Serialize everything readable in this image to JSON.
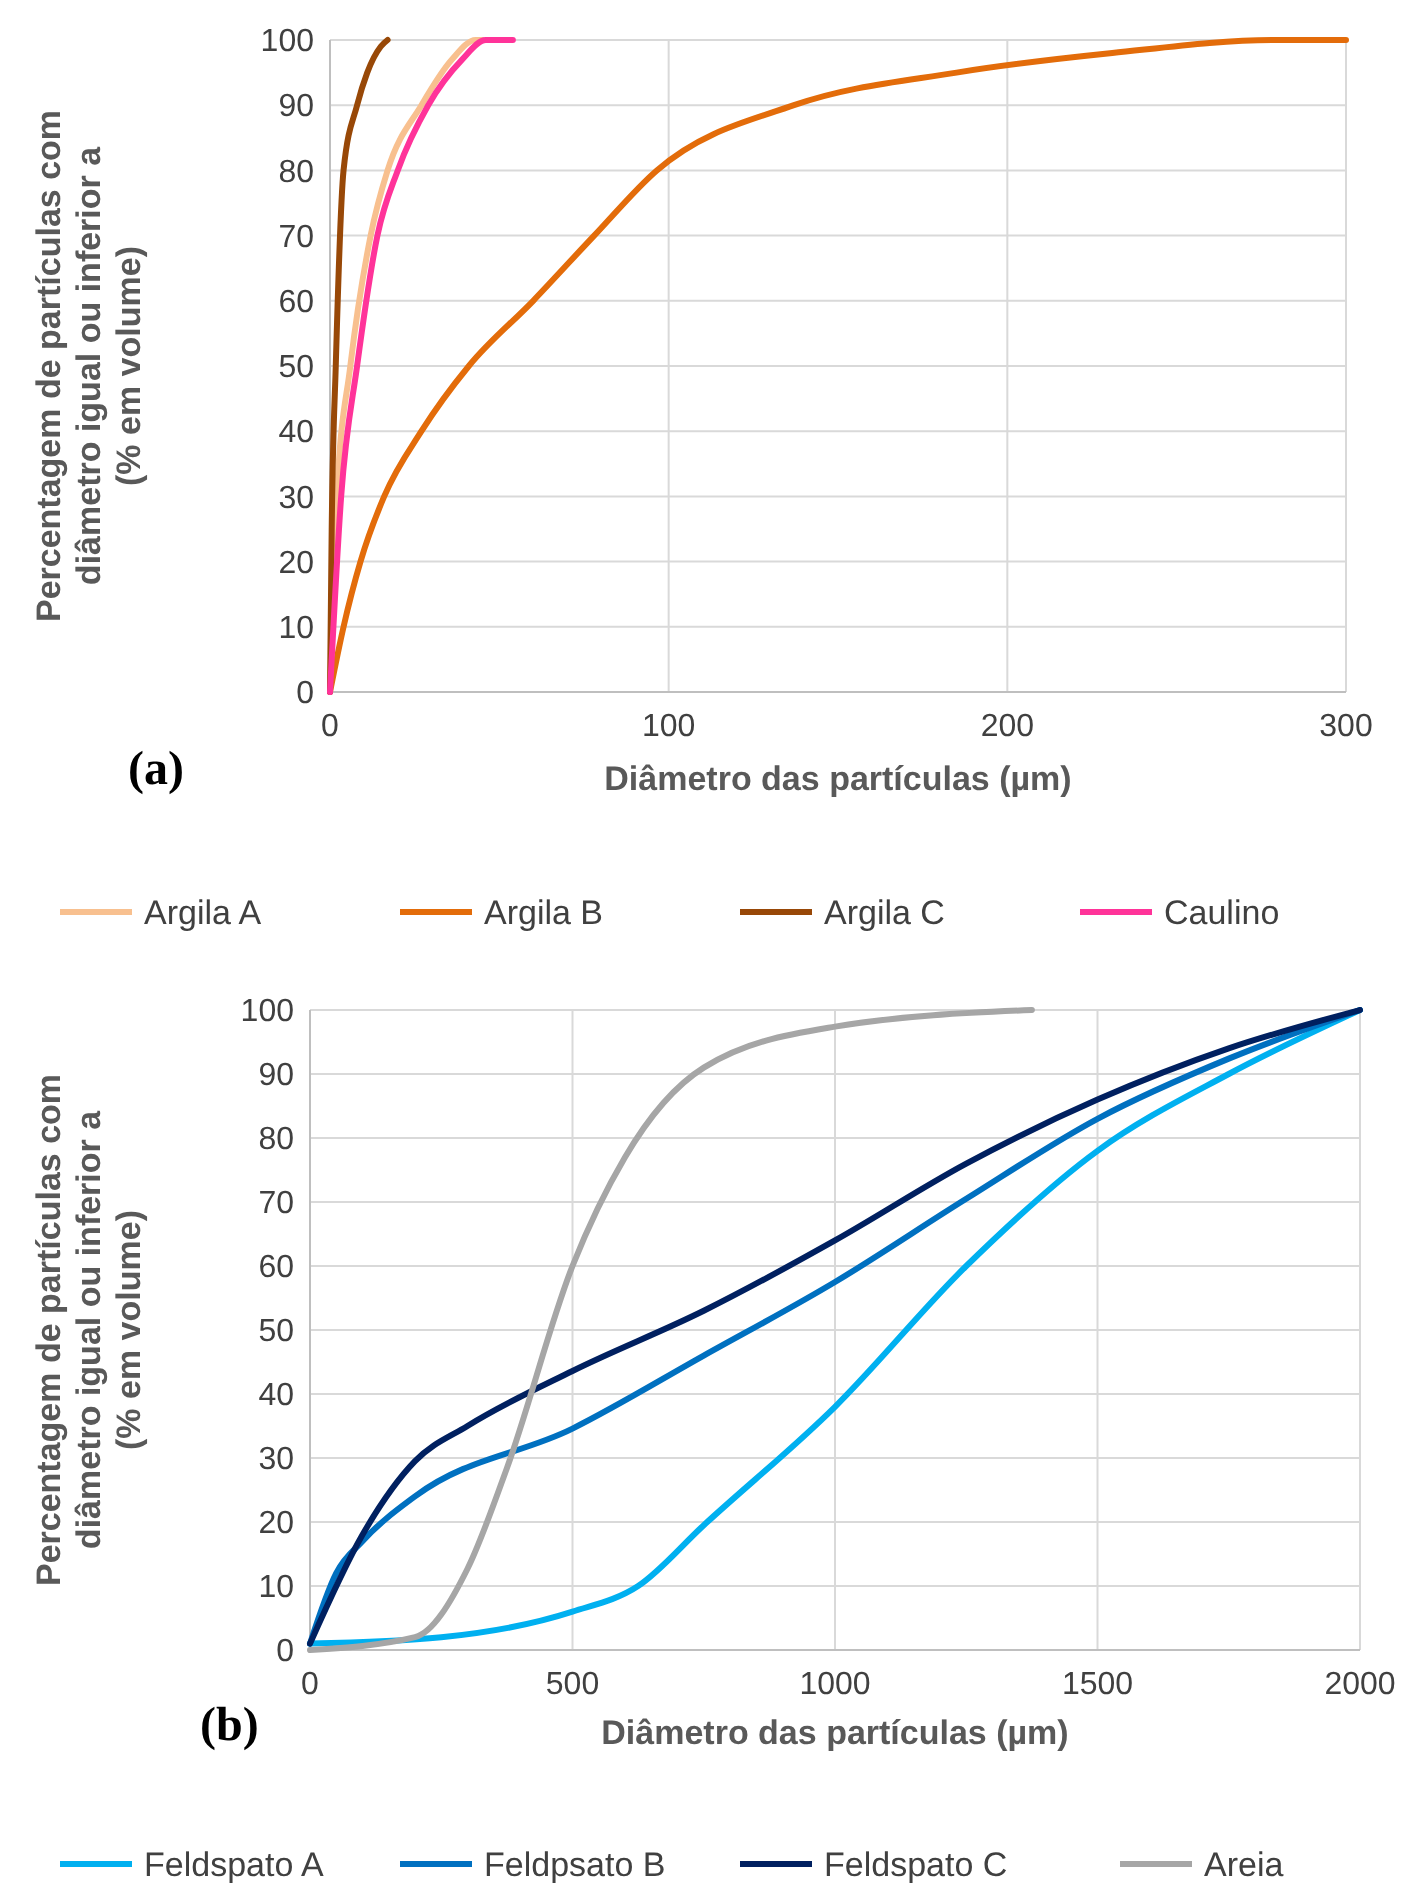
{
  "chart_data": [
    {
      "type": "line",
      "xlabel": "Diâmetro das partículas (µm)",
      "ylabel": "Percentagem de partículas com\ndiâmetro igual ou inferior a\n(% em volume)",
      "annotations": [
        "(a)"
      ],
      "xlim": [
        0,
        300
      ],
      "xticks": [
        0,
        100,
        200,
        300
      ],
      "ylim": [
        0,
        100
      ],
      "yticks": [
        0,
        10,
        20,
        30,
        40,
        50,
        60,
        70,
        80,
        90,
        100
      ],
      "grid": true,
      "legend": "bottom",
      "marker": "none",
      "line_style": "solid",
      "series": [
        {
          "name": "Argila A",
          "color": "#f8c08f",
          "x": [
            0,
            2,
            6,
            12,
            17,
            27,
            36,
            43,
            45
          ],
          "values": [
            0,
            30,
            50,
            70,
            80,
            90,
            97,
            100,
            100
          ]
        },
        {
          "name": "Argila B",
          "color": "#e36c0a",
          "x": [
            0,
            4,
            9,
            16,
            27,
            41,
            60,
            78,
            96.5,
            137,
            185,
            231,
            279,
            300
          ],
          "values": [
            0,
            10,
            20,
            30,
            40,
            50,
            60,
            70,
            80,
            90,
            95,
            98,
            100,
            100
          ]
        },
        {
          "name": "Argila C",
          "color": "#984807",
          "x": [
            0,
            0.5,
            1.7,
            4,
            8,
            11,
            15,
            17
          ],
          "values": [
            0,
            25,
            50,
            80,
            90,
            95,
            99,
            100
          ]
        },
        {
          "name": "Caulino",
          "color": "#ff3399",
          "x": [
            0,
            3.3,
            8,
            14,
            20,
            29,
            39,
            46,
            54
          ],
          "values": [
            0,
            30,
            50,
            70,
            80,
            90,
            97,
            100,
            100
          ]
        }
      ]
    },
    {
      "type": "line",
      "xlabel": "Diâmetro das partículas (µm)",
      "ylabel": "Percentagem de partículas com\ndiâmetro igual ou inferior a\n(% em volume)",
      "annotations": [
        "(b)"
      ],
      "xlim": [
        0,
        2000
      ],
      "xticks": [
        0,
        500,
        1000,
        1500,
        2000
      ],
      "ylim": [
        0,
        100
      ],
      "yticks": [
        0,
        10,
        20,
        30,
        40,
        50,
        60,
        70,
        80,
        90,
        100
      ],
      "grid": true,
      "legend": "bottom",
      "marker": "none",
      "line_style": "solid",
      "series": [
        {
          "name": "Feldspato A",
          "color": "#00b0f0",
          "x": [
            0,
            250,
            500,
            625,
            750,
            1000,
            1250,
            1500,
            1750,
            2000
          ],
          "values": [
            1,
            2,
            6,
            10,
            19.5,
            38,
            60,
            78,
            90,
            100
          ]
        },
        {
          "name": "Feldpsato B",
          "color": "#0070c0",
          "x": [
            0,
            50,
            100,
            200,
            500,
            750,
            1000,
            1250,
            1500,
            1750,
            2000
          ],
          "values": [
            1,
            12,
            17,
            24,
            34.6,
            46,
            57.5,
            70.5,
            83,
            92.4,
            100
          ]
        },
        {
          "name": "Feldspato C",
          "color": "#002060",
          "x": [
            0,
            100,
            200,
            300,
            500,
            750,
            1000,
            1250,
            1500,
            1750,
            2000
          ],
          "values": [
            1,
            18,
            29.5,
            35,
            43.6,
            53,
            64,
            76,
            86,
            94,
            100
          ]
        },
        {
          "name": "Areia",
          "color": "#a6a6a6",
          "x": [
            0,
            200,
            300,
            375,
            500,
            600,
            750,
            1000,
            1375
          ],
          "values": [
            0,
            2,
            12.7,
            28.4,
            60,
            77,
            91,
            97.4,
            100
          ]
        }
      ]
    }
  ]
}
